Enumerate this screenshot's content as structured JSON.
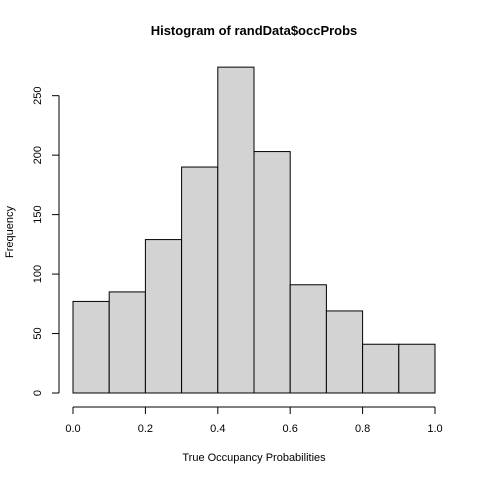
{
  "chart_data": {
    "type": "bar",
    "title": "Histogram of randData$occProbs",
    "xlabel": "True Occupancy Probabilities",
    "ylabel": "Frequency",
    "bins": [
      {
        "x0": 0.0,
        "x1": 0.1,
        "count": 77
      },
      {
        "x0": 0.1,
        "x1": 0.2,
        "count": 85
      },
      {
        "x0": 0.2,
        "x1": 0.3,
        "count": 129
      },
      {
        "x0": 0.3,
        "x1": 0.4,
        "count": 190
      },
      {
        "x0": 0.4,
        "x1": 0.5,
        "count": 274
      },
      {
        "x0": 0.5,
        "x1": 0.6,
        "count": 203
      },
      {
        "x0": 0.6,
        "x1": 0.7,
        "count": 91
      },
      {
        "x0": 0.7,
        "x1": 0.8,
        "count": 69
      },
      {
        "x0": 0.8,
        "x1": 0.9,
        "count": 41
      },
      {
        "x0": 0.9,
        "x1": 1.0,
        "count": 41
      }
    ],
    "xlim": [
      0,
      1
    ],
    "ylim": [
      0,
      280
    ],
    "x_ticks": [
      0.0,
      0.2,
      0.4,
      0.6,
      0.8,
      1.0
    ],
    "x_tick_labels": [
      "0.0",
      "0.2",
      "0.4",
      "0.6",
      "0.8",
      "1.0"
    ],
    "y_ticks": [
      0,
      50,
      100,
      150,
      200,
      250
    ],
    "y_tick_labels": [
      "0",
      "50",
      "100",
      "150",
      "200",
      "250"
    ],
    "grid": false,
    "colors": {
      "bar_fill": "#d3d3d3",
      "bar_stroke": "#000000"
    }
  }
}
